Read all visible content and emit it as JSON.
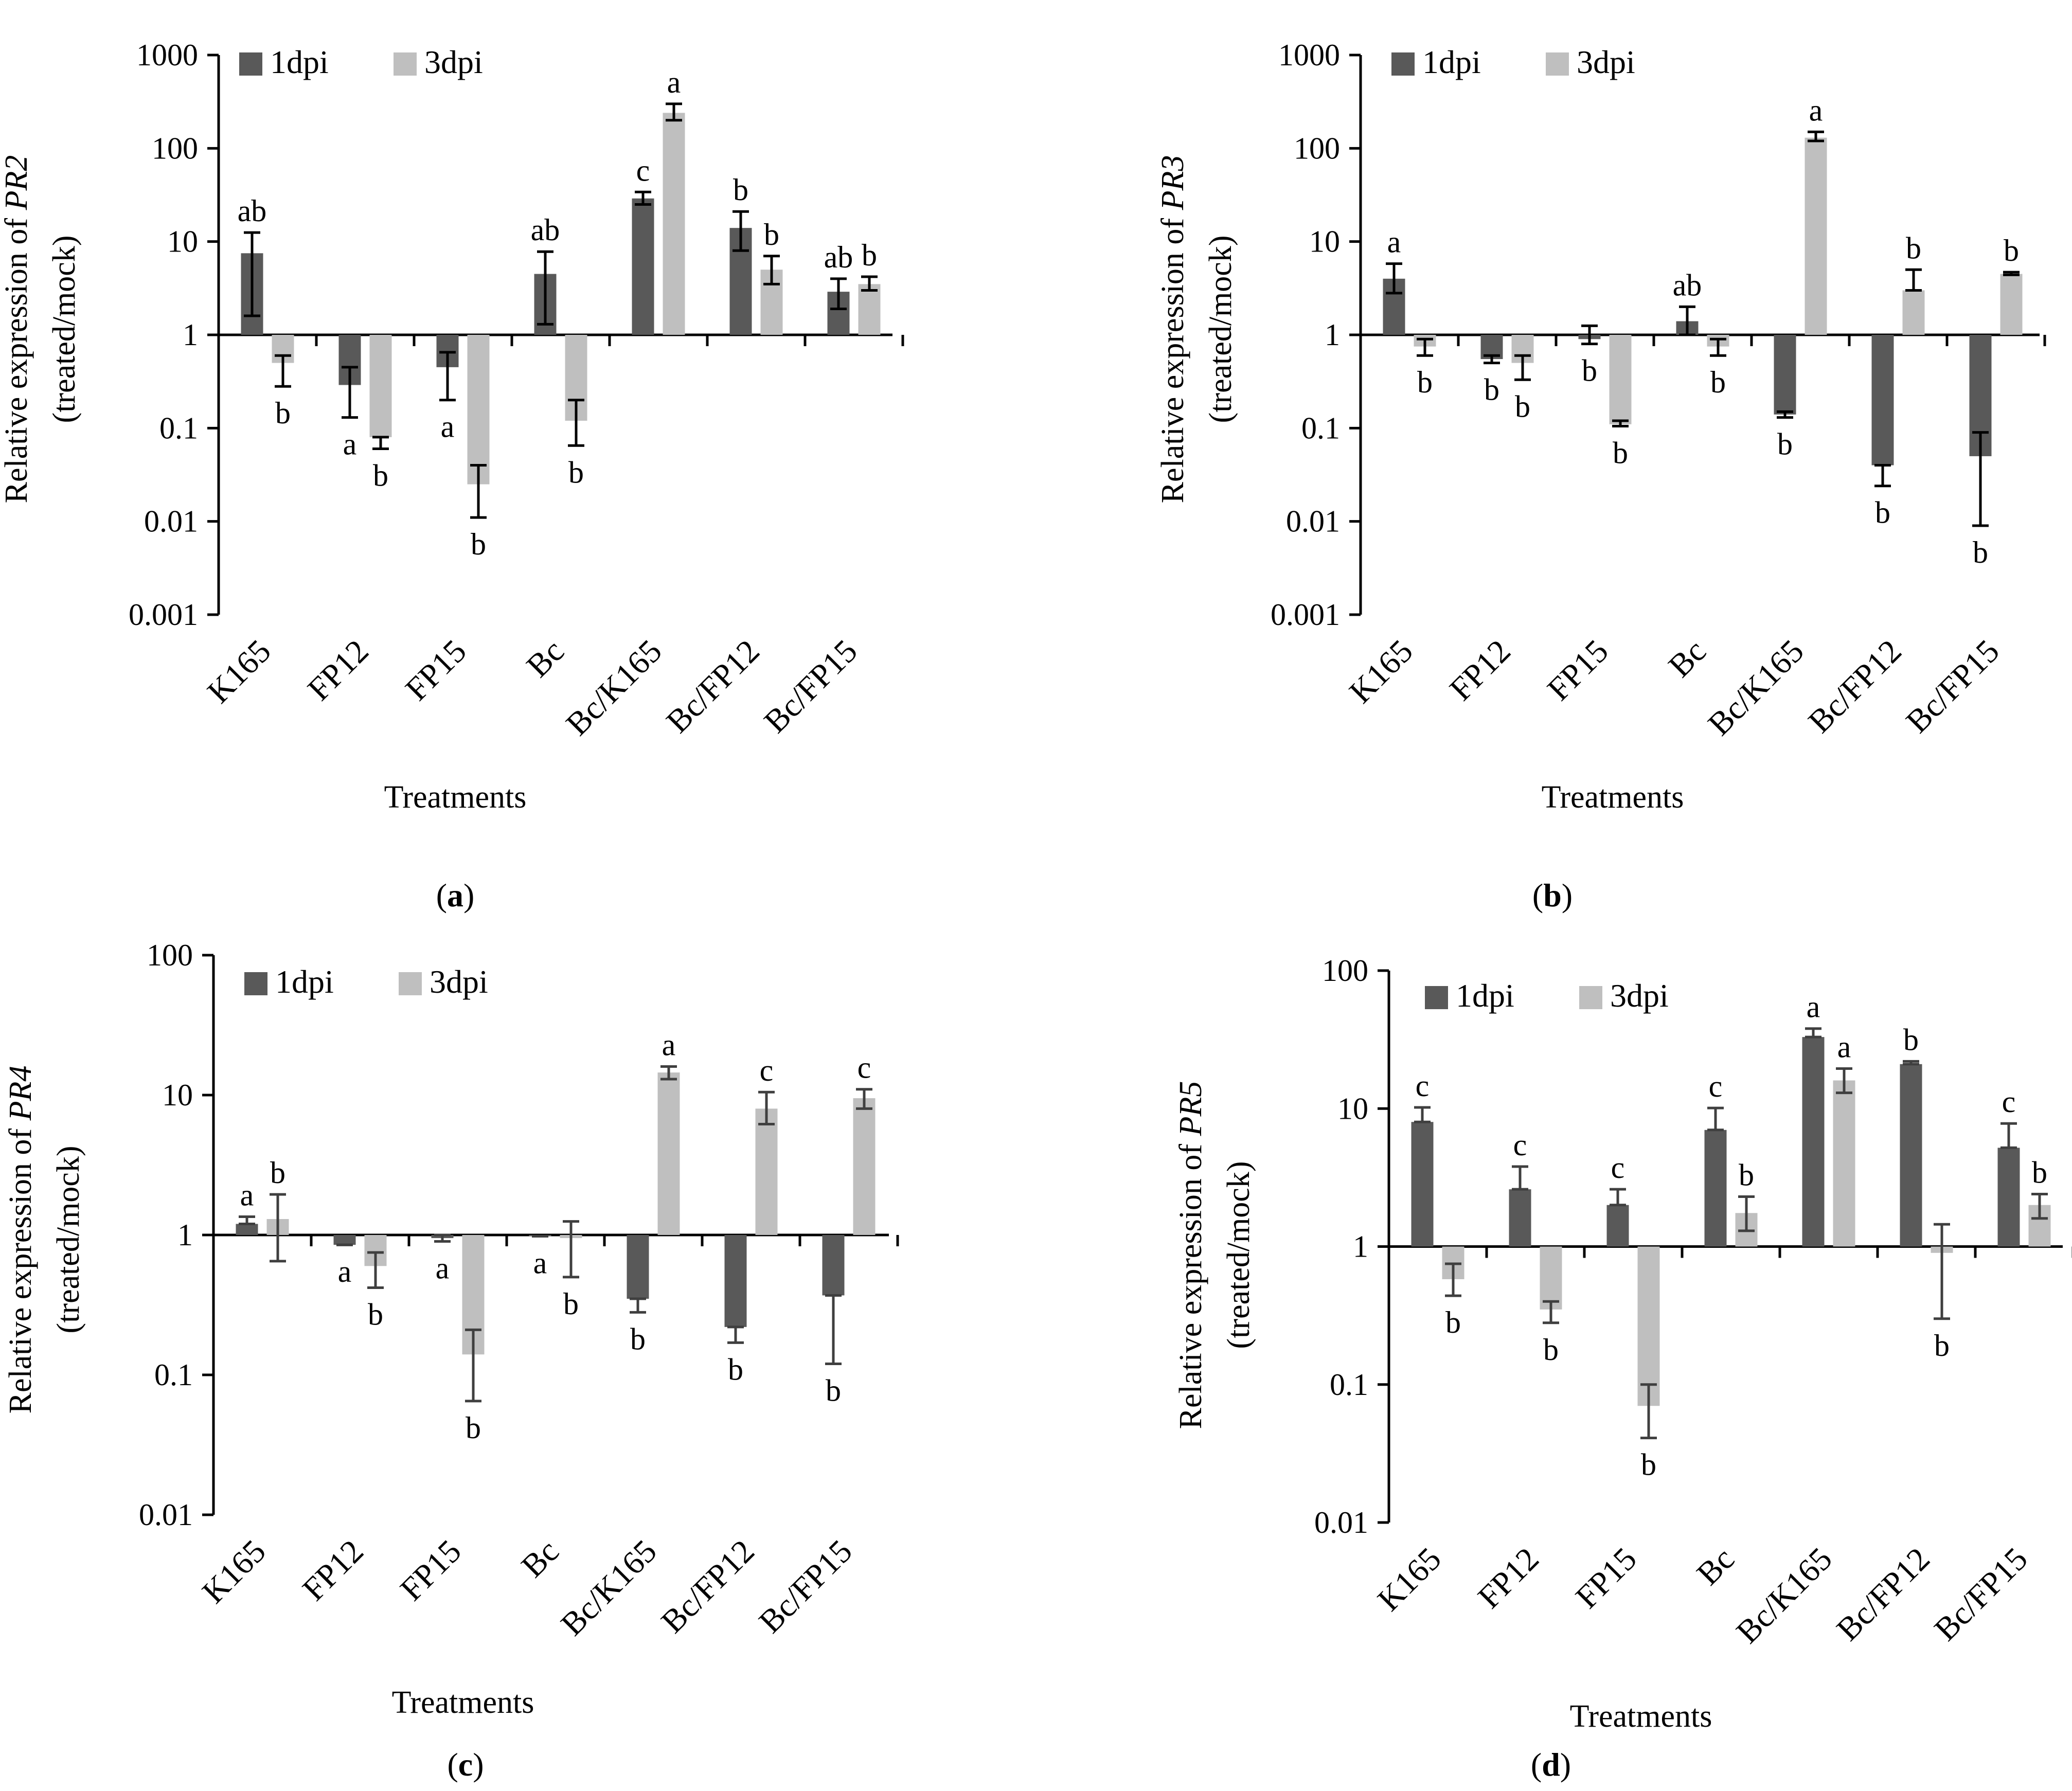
{
  "figure": {
    "panels": [
      {
        "id": "a",
        "caption_letter": "a",
        "ylabel_prefix": "Relative expression of ",
        "gene": "PR2",
        "ylabel_line2": "(treated/mock)",
        "xlabel": "Treatments"
      },
      {
        "id": "b",
        "caption_letter": "b",
        "ylabel_prefix": "Relative expression of ",
        "gene": "PR3",
        "ylabel_line2": "(treated/mock)",
        "xlabel": "Treatments"
      },
      {
        "id": "c",
        "caption_letter": "c",
        "ylabel_prefix": "Relative expression of ",
        "gene": "PR4",
        "ylabel_line2": "(treated/mock)",
        "xlabel": "Treatments"
      },
      {
        "id": "d",
        "caption_letter": "d",
        "ylabel_prefix": "Relative expression of ",
        "gene": "PR5",
        "ylabel_line2": "(treated/mock)",
        "xlabel": "Treatments"
      }
    ]
  },
  "colors": {
    "series_1dpi": "#595959",
    "series_3dpi": "#bfbfbf",
    "axis": "#000000",
    "errorbar_ab": "#000000",
    "errorbar_cd": "#3f3f3f"
  },
  "chart_data": [
    {
      "type": "bar",
      "scale": "log",
      "categories": [
        "K165",
        "FP12",
        "FP15",
        "Bc",
        "Bc/K165",
        "Bc/FP12",
        "Bc/FP15"
      ],
      "ticks": [
        "1000",
        "100",
        "10",
        "1",
        "0.1",
        "0.01",
        "0.001"
      ],
      "ylim": [
        0.001,
        1000
      ],
      "series": [
        {
          "name": "1dpi",
          "values": [
            7.5,
            0.29,
            0.45,
            4.5,
            29,
            14,
            2.9
          ],
          "err_low": [
            1.6,
            0.13,
            0.2,
            1.3,
            25,
            8,
            1.9
          ],
          "err_high": [
            12.5,
            0.45,
            0.65,
            7.8,
            34,
            21,
            4.0
          ],
          "letters": [
            "ab",
            "a",
            "a",
            "ab",
            "c",
            "b",
            "ab"
          ]
        },
        {
          "name": "3dpi",
          "values": [
            0.5,
            0.08,
            0.025,
            0.12,
            240,
            5,
            3.5
          ],
          "err_low": [
            0.28,
            0.06,
            0.011,
            0.065,
            200,
            3.5,
            3.0
          ],
          "err_high": [
            0.6,
            0.08,
            0.04,
            0.2,
            300,
            7,
            4.2
          ],
          "letters": [
            "b",
            "b",
            "b",
            "b",
            "a",
            "b",
            "b"
          ]
        }
      ]
    },
    {
      "type": "bar",
      "scale": "log",
      "categories": [
        "K165",
        "FP12",
        "FP15",
        "Bc",
        "Bc/K165",
        "Bc/FP12",
        "Bc/FP15"
      ],
      "ticks": [
        "1000",
        "100",
        "10",
        "1",
        "0.1",
        "0.01",
        "0.001"
      ],
      "ylim": [
        0.001,
        1000
      ],
      "series": [
        {
          "name": "1dpi",
          "values": [
            4,
            0.55,
            0.9,
            1.4,
            0.14,
            0.04,
            0.05
          ],
          "err_low": [
            2.8,
            0.5,
            0.8,
            1.0,
            0.13,
            0.024,
            0.009
          ],
          "err_high": [
            5.8,
            0.6,
            1.25,
            2.0,
            0.15,
            0.04,
            0.09
          ],
          "letters": [
            "a",
            "b",
            "b",
            "ab",
            "b",
            "b",
            "b"
          ]
        },
        {
          "name": "3dpi",
          "values": [
            0.75,
            0.5,
            0.11,
            0.75,
            130,
            3,
            4.5
          ],
          "err_low": [
            0.6,
            0.33,
            0.105,
            0.6,
            120,
            3.0,
            4.4
          ],
          "err_high": [
            0.9,
            0.6,
            0.12,
            0.9,
            150,
            5.0,
            4.7
          ],
          "letters": [
            "b",
            "b",
            "b",
            "b",
            "a",
            "b",
            "b"
          ]
        }
      ]
    },
    {
      "type": "bar",
      "scale": "log",
      "categories": [
        "K165",
        "FP12",
        "FP15",
        "Bc",
        "Bc/K165",
        "Bc/FP12",
        "Bc/FP15"
      ],
      "ticks": [
        "100",
        "10",
        "1",
        "0.1",
        "0.01"
      ],
      "ylim": [
        0.01,
        100
      ],
      "series": [
        {
          "name": "1dpi",
          "values": [
            1.2,
            0.85,
            0.95,
            0.98,
            0.35,
            0.22,
            0.37
          ],
          "err_low": [
            1.2,
            0.85,
            0.9,
            0.98,
            0.28,
            0.17,
            0.12
          ],
          "err_high": [
            1.35,
            0.85,
            1.0,
            0.98,
            0.35,
            0.22,
            0.37
          ],
          "letters": [
            "a",
            "a",
            "a",
            "a",
            "b",
            "b",
            "b"
          ]
        },
        {
          "name": "3dpi",
          "values": [
            1.3,
            0.6,
            0.14,
            0.95,
            14.5,
            8,
            9.5
          ],
          "err_low": [
            0.65,
            0.42,
            0.065,
            0.5,
            13,
            6.2,
            8.0
          ],
          "err_high": [
            1.95,
            0.75,
            0.21,
            1.25,
            16,
            10.5,
            11
          ],
          "letters": [
            "b",
            "b",
            "b",
            "b",
            "a",
            "c",
            "c"
          ]
        }
      ]
    },
    {
      "type": "bar",
      "scale": "log",
      "categories": [
        "K165",
        "FP12",
        "FP15",
        "Bc",
        "Bc/K165",
        "Bc/FP12",
        "Bc/FP15"
      ],
      "ticks": [
        "100",
        "10",
        "1",
        "0.1",
        "0.01"
      ],
      "ylim": [
        0.01,
        100
      ],
      "series": [
        {
          "name": "1dpi",
          "values": [
            8,
            2.6,
            2,
            7,
            33,
            21,
            5.2
          ],
          "err_low": [
            8,
            2.6,
            2,
            7,
            33,
            21,
            5.2
          ],
          "err_high": [
            10.2,
            3.8,
            2.6,
            10.1,
            38,
            22,
            7.8
          ],
          "letters": [
            "c",
            "c",
            "c",
            "c",
            "a",
            "b",
            "c"
          ]
        },
        {
          "name": "3dpi",
          "values": [
            0.58,
            0.35,
            0.07,
            1.75,
            16,
            0.9,
            2
          ],
          "err_low": [
            0.44,
            0.28,
            0.041,
            1.3,
            13,
            0.3,
            1.6
          ],
          "err_high": [
            0.75,
            0.4,
            0.1,
            2.3,
            19.5,
            1.45,
            2.4
          ],
          "letters": [
            "b",
            "b",
            "b",
            "b",
            "a",
            "b",
            "b"
          ]
        }
      ]
    }
  ]
}
